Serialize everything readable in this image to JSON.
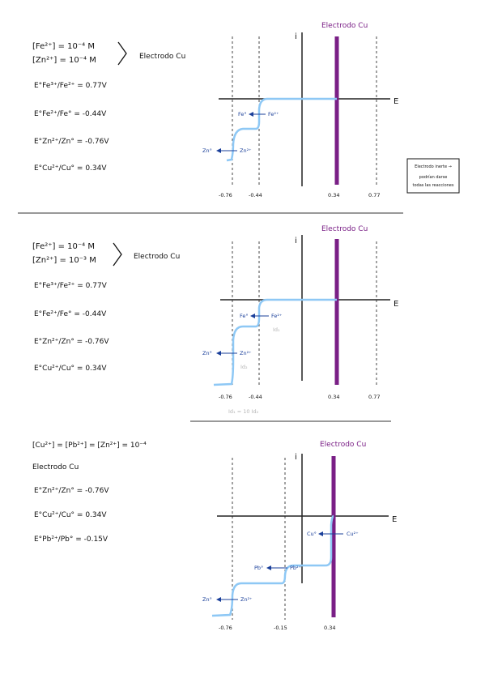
{
  "sections": [
    {
      "conditions": [
        "[Fe²⁺] = 10⁻⁴ M",
        "[Zn²⁺] = 10⁻⁴ M"
      ],
      "electrode": "Electrodo Cu",
      "potentials": [
        "E°Fe³⁺/Fe²⁺ = 0.77V",
        "E°Fe²⁺/Fe° = -0.44V",
        "E°Zn²⁺/Zn° = -0.76V",
        "E°Cu²⁺/Cu° = 0.34V"
      ],
      "diagram": {
        "electrode_label": "Electrodo Cu",
        "i_axis": "i",
        "e_axis": "E",
        "ticks": [
          "-0.76",
          "-0.44",
          "0.34",
          "0.77"
        ],
        "species": [
          "Fe°",
          "Fe²⁺",
          "Zn°",
          "Zn²⁺"
        ],
        "note": [
          "Electrodo inerte →",
          "podrían darse",
          "todas las reacciones"
        ]
      }
    },
    {
      "conditions": [
        "[Fe²⁺] = 10⁻⁴ M",
        "[Zn²⁺] = 10⁻³ M"
      ],
      "electrode": "Electrodo Cu",
      "potentials": [
        "E°Fe³⁺/Fe²⁺ = 0.77V",
        "E°Fe²⁺/Fe° = -0.44V",
        "E°Zn²⁺/Zn° = -0.76V",
        "E°Cu²⁺/Cu° = 0.34V"
      ],
      "diagram": {
        "electrode_label": "Electrodo Cu",
        "i_axis": "i",
        "e_axis": "E",
        "ticks": [
          "-0.76",
          "-0.44",
          "0.34",
          "0.77"
        ],
        "species": [
          "Fe°",
          "Fe²⁺",
          "Zn°",
          "Zn²⁺"
        ],
        "currents": [
          "Id₁",
          "Id₂"
        ],
        "relation": "Id₁ = 10 Id₂"
      }
    },
    {
      "conditions": [
        "[Cu²⁺] = [Pb²⁺] = [Zn²⁺] = 10⁻⁴"
      ],
      "electrode": "Electrodo Cu",
      "potentials": [
        "E°Zn²⁺/Zn° = -0.76V",
        "E°Cu²⁺/Cu° = 0.34V",
        "E°Pb²⁺/Pb° = -0.15V"
      ],
      "diagram": {
        "electrode_label": "Electrodo Cu",
        "i_axis": "i",
        "e_axis": "E",
        "ticks": [
          "-0.76",
          "-0.15",
          "0.34"
        ],
        "species": [
          "Cu°",
          "Cu²⁺",
          "Pb°",
          "Pb²⁺",
          "Zn°",
          "Zn²⁺"
        ]
      }
    }
  ]
}
